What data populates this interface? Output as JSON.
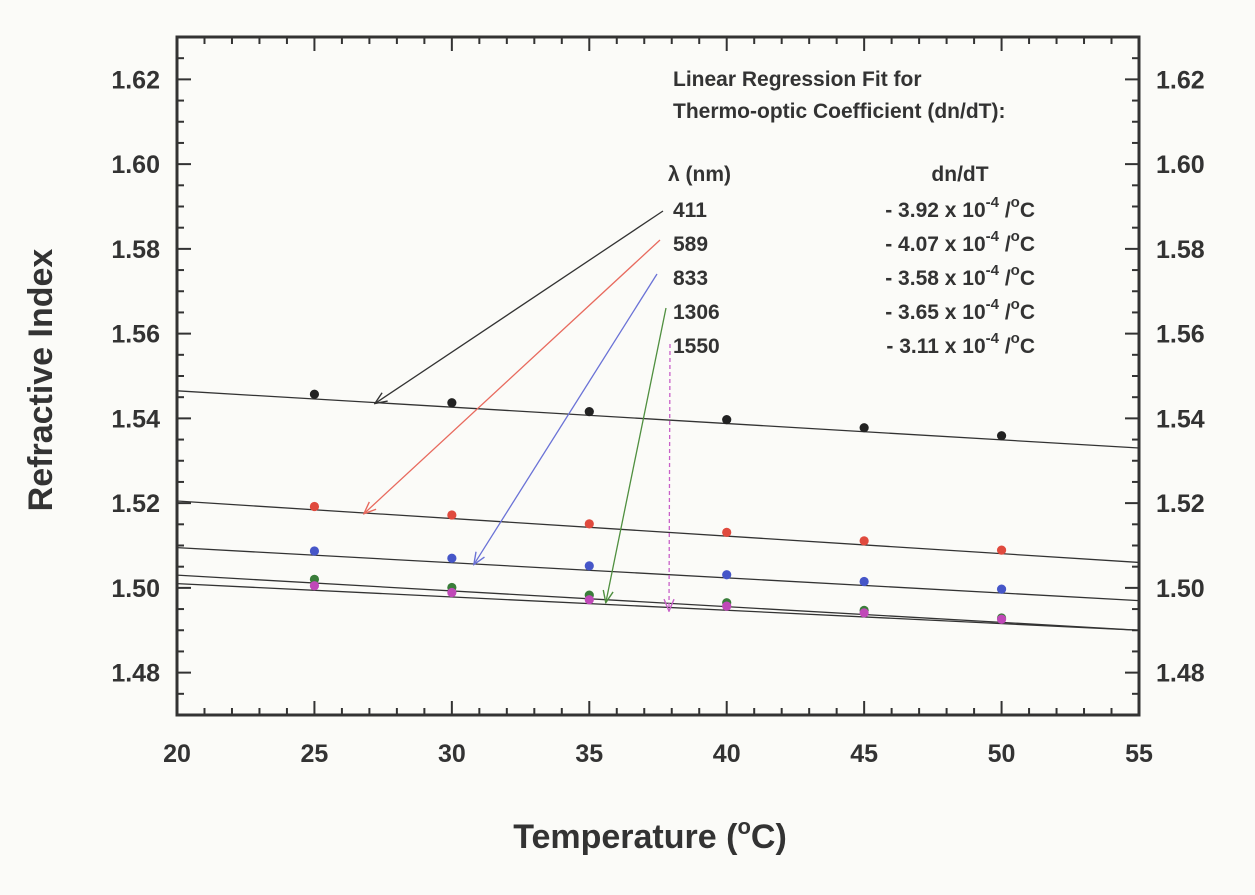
{
  "chart_data": {
    "type": "scatter",
    "xlabel": "Temperature (",
    "xlabel_sup": "o",
    "xlabel_tail": "C)",
    "ylabel": "Refractive Index",
    "xlim": [
      20,
      55
    ],
    "ylim": [
      1.47,
      1.63
    ],
    "x_ticks": [
      "20",
      "25",
      "30",
      "35",
      "40",
      "45",
      "50",
      "55"
    ],
    "y_ticks": [
      "1.48",
      "1.50",
      "1.52",
      "1.54",
      "1.56",
      "1.58",
      "1.60",
      "1.62"
    ],
    "grid": false,
    "legend": {
      "title_line1": "Linear Regression Fit for",
      "title_line2": "Thermo-optic Coefficient (dn/dT):",
      "col1_header": "λ (nm)",
      "col2_header": "dn/dT",
      "rows": [
        {
          "wavelength": "411",
          "coef_prefix": "- 3.92 x 10",
          "exp": "-4",
          "unit_mid": " /",
          "deg": "o",
          "unit_end": "C"
        },
        {
          "wavelength": "589",
          "coef_prefix": "- 4.07 x 10",
          "exp": "-4",
          "unit_mid": " /",
          "deg": "o",
          "unit_end": "C"
        },
        {
          "wavelength": "833",
          "coef_prefix": "- 3.58 x 10",
          "exp": "-4",
          "unit_mid": " /",
          "deg": "o",
          "unit_end": "C"
        },
        {
          "wavelength": "1306",
          "coef_prefix": "- 3.65 x 10",
          "exp": "-4",
          "unit_mid": " /",
          "deg": "o",
          "unit_end": "C"
        },
        {
          "wavelength": "1550",
          "coef_prefix": "- 3.11 x 10",
          "exp": "-4",
          "unit_mid": " /",
          "deg": "o",
          "unit_end": "C"
        }
      ]
    },
    "x": [
      25,
      30,
      35,
      40,
      45,
      50
    ],
    "series": [
      {
        "color": "#222222",
        "arrow_color": "#333333",
        "arrow_target": [
          27.2,
          1.5435
        ],
        "values": [
          1.5457,
          1.5437,
          1.5416,
          1.5397,
          1.5378,
          1.5359
        ],
        "fit": [
          [
            20,
            1.5465
          ],
          [
            55,
            1.533
          ]
        ]
      },
      {
        "color": "#e04a3e",
        "arrow_color": "#e86a5e",
        "arrow_target": [
          26.8,
          1.5175
        ],
        "values": [
          1.5192,
          1.5172,
          1.5151,
          1.5131,
          1.5111,
          1.5089
        ],
        "fit": [
          [
            20,
            1.5205
          ],
          [
            55,
            1.506
          ]
        ]
      },
      {
        "color": "#4656c8",
        "arrow_color": "#6a72d6",
        "arrow_target": [
          30.8,
          1.5055
        ],
        "values": [
          1.5087,
          1.507,
          1.5052,
          1.5031,
          1.5015,
          1.4997
        ],
        "fit": [
          [
            20,
            1.5095
          ],
          [
            55,
            1.497
          ]
        ]
      },
      {
        "color": "#3a7d3a",
        "arrow_color": "#4f8f3f",
        "arrow_target": [
          35.6,
          1.4965
        ],
        "values": [
          1.502,
          1.5001,
          1.4983,
          1.4965,
          1.4947,
          1.4929
        ],
        "fit": [
          [
            20,
            1.503
          ],
          [
            55,
            1.49
          ]
        ]
      },
      {
        "color": "#c048b8",
        "arrow_color": "#c860c8",
        "arrow_target": [
          37.9,
          1.4945
        ],
        "values": [
          1.5005,
          1.4989,
          1.4972,
          1.4957,
          1.4941,
          1.4926
        ],
        "fit": [
          [
            20,
            1.501
          ],
          [
            55,
            1.49
          ]
        ]
      }
    ]
  }
}
